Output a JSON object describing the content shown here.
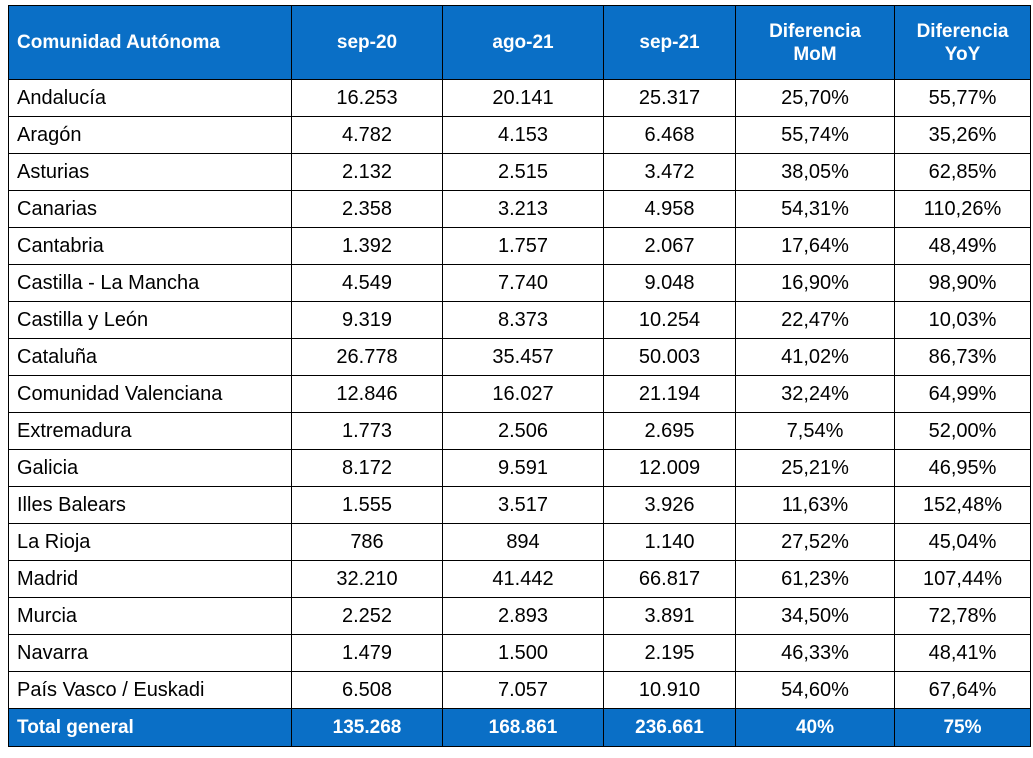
{
  "table": {
    "header": [
      "Comunidad Autónoma",
      "sep-20",
      "ago-21",
      "sep-21",
      "Diferencia MoM",
      "Diferencia YoY"
    ],
    "rows": [
      [
        "Andalucía",
        "16.253",
        "20.141",
        "25.317",
        "25,70%",
        "55,77%"
      ],
      [
        "Aragón",
        "4.782",
        "4.153",
        "6.468",
        "55,74%",
        "35,26%"
      ],
      [
        "Asturias",
        "2.132",
        "2.515",
        "3.472",
        "38,05%",
        "62,85%"
      ],
      [
        "Canarias",
        "2.358",
        "3.213",
        "4.958",
        "54,31%",
        "110,26%"
      ],
      [
        "Cantabria",
        "1.392",
        "1.757",
        "2.067",
        "17,64%",
        "48,49%"
      ],
      [
        "Castilla - La Mancha",
        "4.549",
        "7.740",
        "9.048",
        "16,90%",
        "98,90%"
      ],
      [
        "Castilla y León",
        "9.319",
        "8.373",
        "10.254",
        "22,47%",
        "10,03%"
      ],
      [
        "Cataluña",
        "26.778",
        "35.457",
        "50.003",
        "41,02%",
        "86,73%"
      ],
      [
        "Comunidad Valenciana",
        "12.846",
        "16.027",
        "21.194",
        "32,24%",
        "64,99%"
      ],
      [
        "Extremadura",
        "1.773",
        "2.506",
        "2.695",
        "7,54%",
        "52,00%"
      ],
      [
        "Galicia",
        "8.172",
        "9.591",
        "12.009",
        "25,21%",
        "46,95%"
      ],
      [
        "Illes Balears",
        "1.555",
        "3.517",
        "3.926",
        "11,63%",
        "152,48%"
      ],
      [
        "La Rioja",
        "786",
        "894",
        "1.140",
        "27,52%",
        "45,04%"
      ],
      [
        "Madrid",
        "32.210",
        "41.442",
        "66.817",
        "61,23%",
        "107,44%"
      ],
      [
        "Murcia",
        "2.252",
        "2.893",
        "3.891",
        "34,50%",
        "72,78%"
      ],
      [
        "Navarra",
        "1.479",
        "1.500",
        "2.195",
        "46,33%",
        "48,41%"
      ],
      [
        "País Vasco / Euskadi",
        "6.508",
        "7.057",
        "10.910",
        "54,60%",
        "67,64%"
      ]
    ],
    "total": [
      "Total general",
      "135.268",
      "168.861",
      "236.661",
      "40%",
      "75%"
    ]
  }
}
